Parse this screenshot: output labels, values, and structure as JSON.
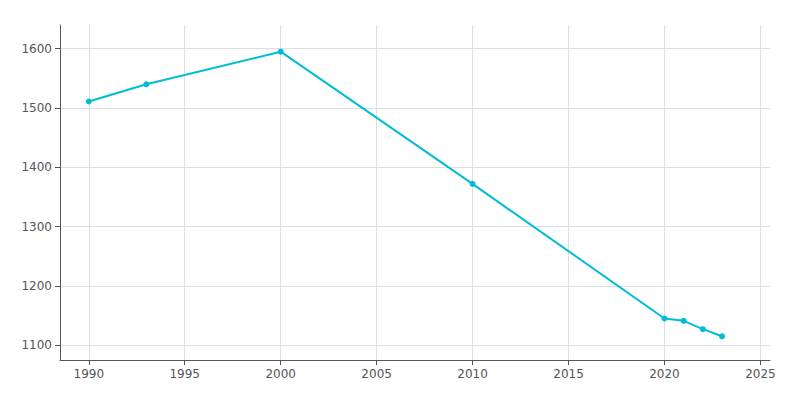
{
  "chart_data": {
    "type": "line",
    "x": [
      1990,
      1993,
      2000,
      2010,
      2020,
      2021,
      2022,
      2023
    ],
    "values": [
      1511,
      1540,
      1595,
      1372,
      1145,
      1141,
      1127,
      1115
    ],
    "color": "#00BCD4",
    "marker": "circle",
    "xlim": [
      1988.5,
      2025.5
    ],
    "ylim": [
      1075,
      1640
    ],
    "xticks": [
      1990,
      1995,
      2000,
      2005,
      2010,
      2015,
      2020,
      2025
    ],
    "yticks": [
      1100,
      1200,
      1300,
      1400,
      1500,
      1600
    ],
    "grid": true
  }
}
